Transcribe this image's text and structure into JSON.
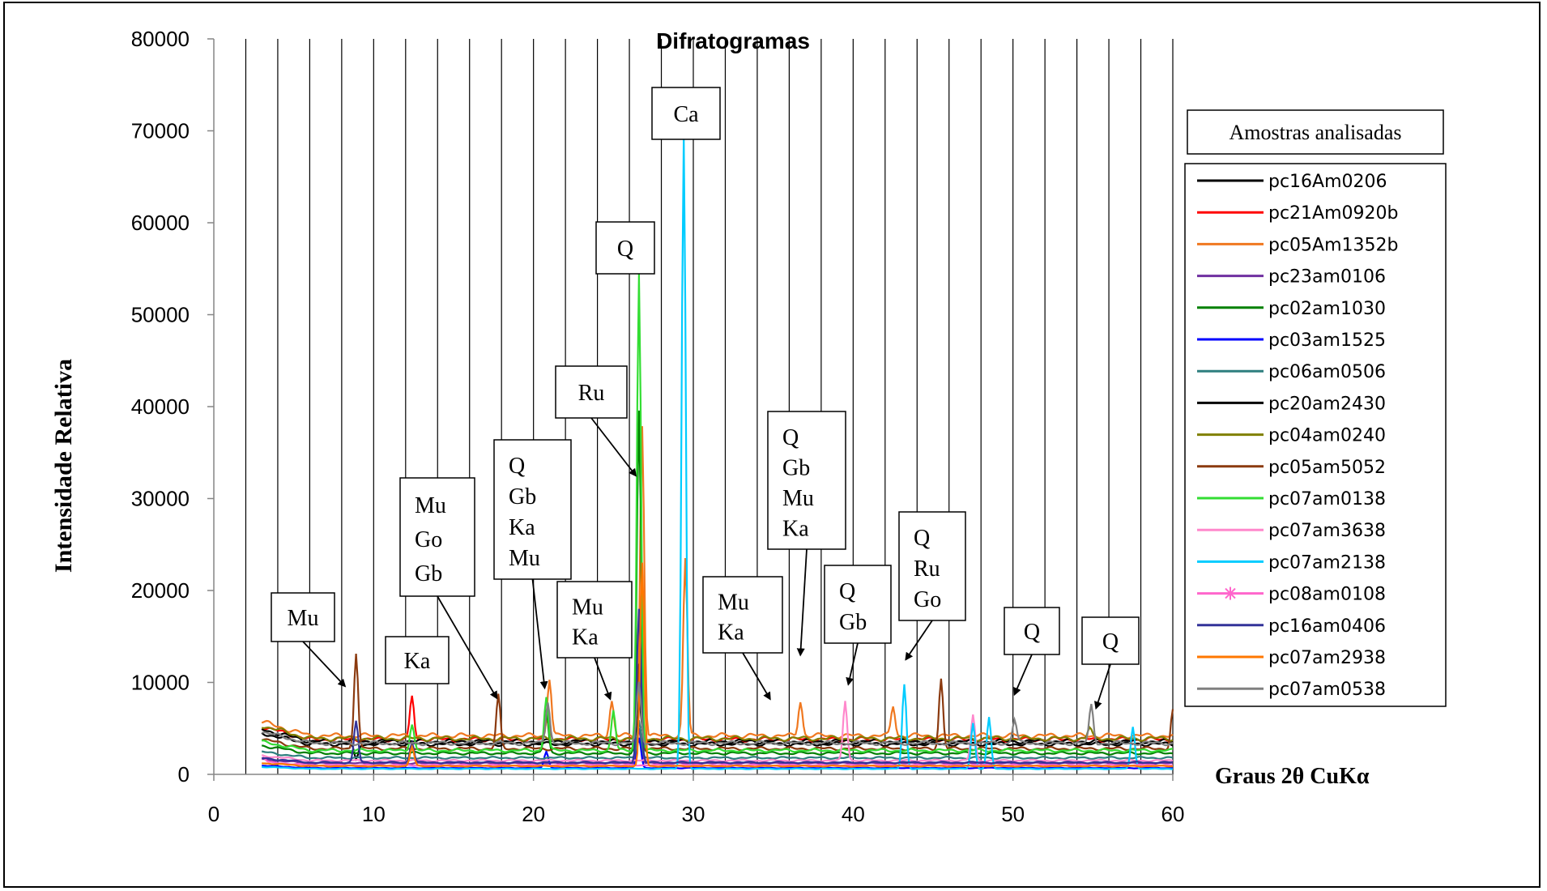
{
  "chart_data": {
    "type": "line",
    "title": "Difratogramas",
    "xlabel": "Graus  2θ CuKα",
    "ylabel": "Intensidade  Relativa",
    "xlim": [
      0,
      60
    ],
    "ylim": [
      0,
      80000
    ],
    "x_ticks": [
      "0",
      "10",
      "20",
      "30",
      "40",
      "50",
      "60"
    ],
    "y_ticks": [
      "0",
      "10000",
      "20000",
      "30000",
      "40000",
      "50000",
      "60000",
      "70000",
      "80000"
    ],
    "vertical_gridlines_x": [
      2,
      4,
      6,
      8,
      10,
      12,
      14,
      16,
      18,
      20,
      22,
      24,
      26,
      28,
      30,
      32,
      34,
      36,
      38,
      40,
      42,
      44,
      46,
      48,
      50,
      52,
      54,
      56,
      58,
      60
    ],
    "legend": {
      "title": "Amostras analisadas",
      "placement": "right"
    },
    "series": [
      {
        "name": "pc16Am0206",
        "color": "#000000",
        "baseline": 3300,
        "peaks": [
          [
            26.6,
            9000
          ],
          [
            8.9,
            1500
          ]
        ]
      },
      {
        "name": "pc21Am0920b",
        "color": "#ff0000",
        "baseline": 3800,
        "peaks": [
          [
            12.4,
            8500
          ],
          [
            26.6,
            12000
          ],
          [
            20.9,
            6500
          ]
        ]
      },
      {
        "name": "pc05Am1352b",
        "color": "#f07820",
        "baseline": 4200,
        "peaks": [
          [
            26.8,
            38000
          ],
          [
            29.5,
            23500
          ],
          [
            21.0,
            10500
          ],
          [
            24.9,
            8000
          ],
          [
            36.7,
            8000
          ],
          [
            42.5,
            7500
          ]
        ]
      },
      {
        "name": "pc23am0106",
        "color": "#7030a0",
        "baseline": 1200,
        "peaks": [
          [
            26.6,
            5000
          ]
        ]
      },
      {
        "name": "pc02am1030",
        "color": "#008000",
        "baseline": 2300,
        "peaks": [
          [
            26.6,
            39500
          ],
          [
            20.8,
            7000
          ]
        ]
      },
      {
        "name": "pc03am1525",
        "color": "#0000ff",
        "baseline": 700,
        "peaks": [
          [
            26.6,
            4000
          ],
          [
            20.8,
            2500
          ]
        ]
      },
      {
        "name": "pc06am0506",
        "color": "#2e7f7f",
        "baseline": 1800,
        "peaks": [
          [
            26.6,
            6000
          ]
        ]
      },
      {
        "name": "pc20am2430",
        "color": "#000000",
        "baseline": 3600,
        "peaks": [
          [
            26.6,
            8000
          ]
        ]
      },
      {
        "name": "pc04am0240",
        "color": "#808000",
        "baseline": 3900,
        "peaks": [
          [
            26.6,
            9500
          ],
          [
            54.8,
            5000
          ]
        ]
      },
      {
        "name": "pc05am5052",
        "color": "#8b3a0f",
        "baseline": 2800,
        "peaks": [
          [
            8.9,
            13300
          ],
          [
            17.8,
            8600
          ],
          [
            45.5,
            10400
          ],
          [
            26.6,
            12000
          ],
          [
            60,
            7000
          ]
        ]
      },
      {
        "name": "pc07am0138",
        "color": "#33dd33",
        "baseline": 2600,
        "peaks": [
          [
            26.6,
            54500
          ],
          [
            20.8,
            8500
          ],
          [
            12.4,
            5500
          ],
          [
            25.0,
            7000
          ]
        ]
      },
      {
        "name": "pc07am3638",
        "color": "#ff88cc",
        "baseline": 1500,
        "peaks": [
          [
            39.5,
            8000
          ],
          [
            47.5,
            6500
          ]
        ]
      },
      {
        "name": "pc07am2138",
        "color": "#00ccff",
        "baseline": 600,
        "peaks": [
          [
            29.4,
            69500
          ],
          [
            43.2,
            9800
          ],
          [
            48.5,
            6200
          ],
          [
            57.5,
            5200
          ],
          [
            47.5,
            5600
          ]
        ]
      },
      {
        "name": "pc08am0108",
        "color": "#ff66cc",
        "baseline": 1000,
        "peaks": [
          [
            3.1,
            1500
          ]
        ]
      },
      {
        "name": "pc16am0406",
        "color": "#333399",
        "baseline": 1300,
        "peaks": [
          [
            8.9,
            5800
          ],
          [
            26.6,
            18000
          ],
          [
            12.4,
            3500
          ]
        ]
      },
      {
        "name": "pc07am2938",
        "color": "#ff7700",
        "baseline": 900,
        "peaks": [
          [
            26.8,
            23000
          ],
          [
            12.4,
            3000
          ]
        ]
      },
      {
        "name": "pc07am0538",
        "color": "#808080",
        "baseline": 3400,
        "peaks": [
          [
            26.6,
            10000
          ],
          [
            50.1,
            6000
          ],
          [
            54.9,
            7500
          ],
          [
            20.9,
            8000
          ]
        ]
      }
    ],
    "annotations": [
      {
        "lines": [
          "Mu"
        ],
        "arrow_to": [
          8.2,
          9600
        ]
      },
      {
        "lines": [
          "Ka"
        ]
      },
      {
        "lines": [
          "Mu",
          "Go",
          "Gb"
        ],
        "arrow_to": [
          17.7,
          8300
        ]
      },
      {
        "lines": [
          "Q",
          "Gb",
          "Ka",
          "Mu"
        ],
        "arrow_to": [
          20.7,
          9400
        ]
      },
      {
        "lines": [
          "Mu",
          "Ka"
        ],
        "arrow_to": [
          24.8,
          8200
        ]
      },
      {
        "lines": [
          "Ru"
        ],
        "arrow_to": [
          26.4,
          32500
        ]
      },
      {
        "lines": [
          "Q"
        ]
      },
      {
        "lines": [
          "Ca"
        ]
      },
      {
        "lines": [
          "Mu",
          "Ka"
        ],
        "arrow_to": [
          34.8,
          8200
        ]
      },
      {
        "lines": [
          "Q",
          "Gb",
          "Mu",
          "Ka"
        ],
        "arrow_to": [
          36.7,
          13000
        ]
      },
      {
        "lines": [
          "Q",
          "Gb"
        ],
        "arrow_to": [
          39.7,
          9800
        ]
      },
      {
        "lines": [
          "Q",
          "Ru",
          "Go"
        ],
        "arrow_to": [
          43.3,
          12500
        ]
      },
      {
        "lines": [
          "Q"
        ],
        "arrow_to": [
          50.1,
          8700
        ]
      },
      {
        "lines": [
          "Q"
        ],
        "arrow_to": [
          55.2,
          7200
        ]
      }
    ]
  }
}
